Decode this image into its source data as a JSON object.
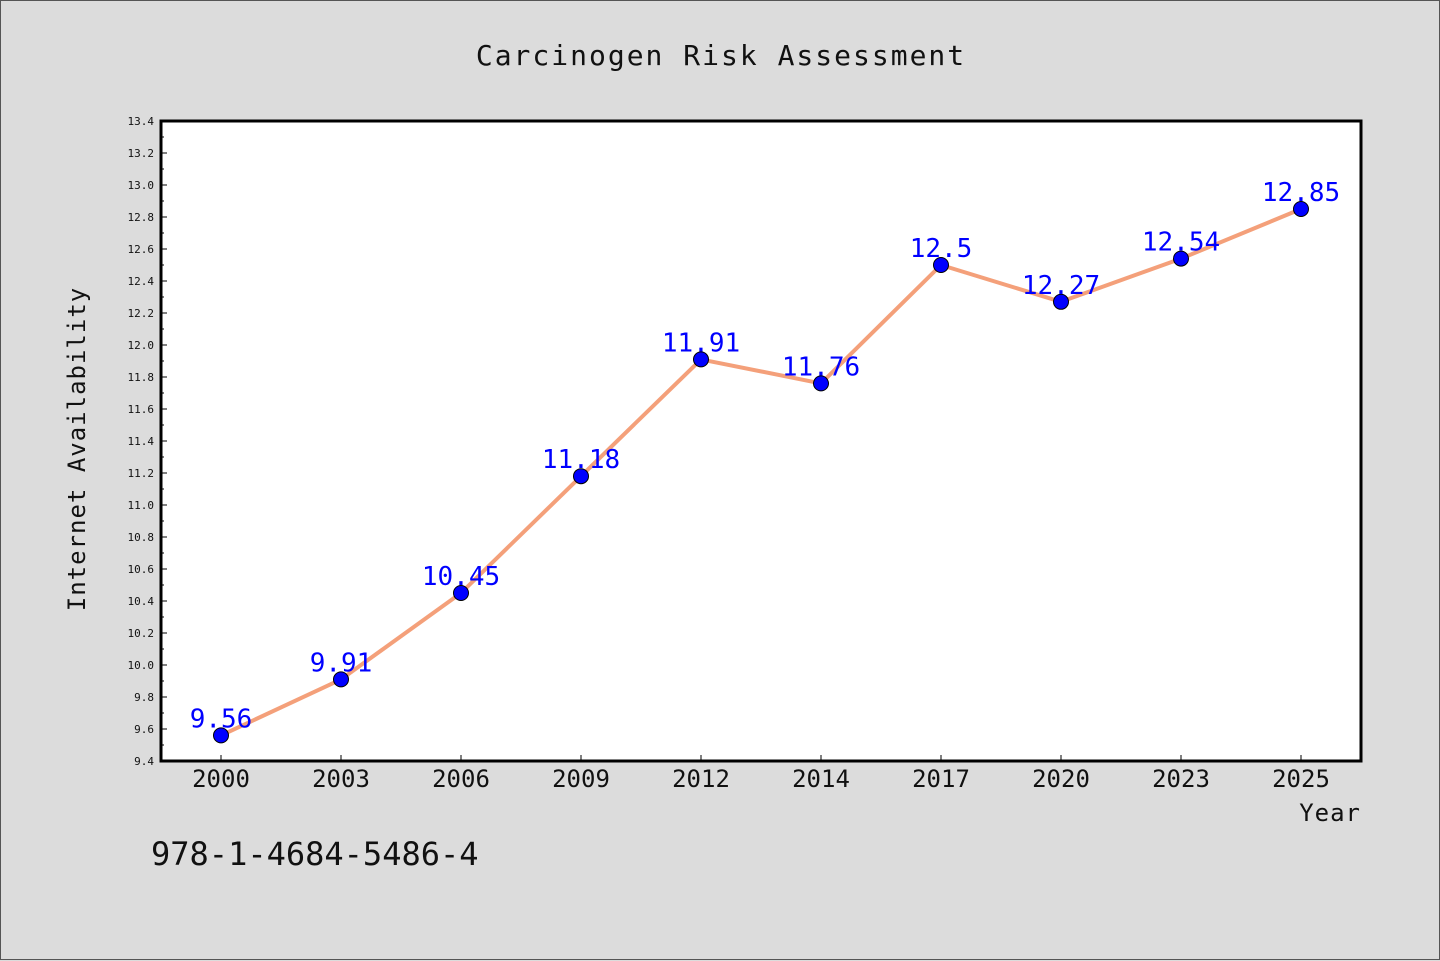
{
  "chart_data": {
    "type": "line",
    "title": "Carcinogen Risk Assessment",
    "xlabel": "Year",
    "ylabel": "Internet Availability",
    "categories": [
      "2000",
      "2003",
      "2006",
      "2009",
      "2012",
      "2014",
      "2017",
      "2020",
      "2023",
      "2025"
    ],
    "series": [
      {
        "values": [
          9.56,
          9.91,
          10.45,
          11.18,
          11.91,
          11.76,
          12.5,
          12.27,
          12.54,
          12.85
        ],
        "labels": [
          "9.56",
          "9.91",
          "10.45",
          "11.18",
          "11.91",
          "11.76",
          "12.5",
          "12.27",
          "12.54",
          "12.85"
        ]
      }
    ],
    "ylim": [
      9.4,
      13.4
    ],
    "yticks": [
      "9.4",
      "9.6",
      "9.8",
      "10.0",
      "10.2",
      "10.4",
      "10.6",
      "10.8",
      "11.0",
      "11.2",
      "11.4",
      "11.6",
      "11.8",
      "12.0",
      "12.2",
      "12.4",
      "12.6",
      "12.8",
      "13.0",
      "13.2",
      "13.4"
    ],
    "grid": false,
    "line_color": "#f4a07a",
    "marker_color": "#0000ff",
    "label_color": "#0000ff",
    "background": "#dcdcdc",
    "plot_background": "#ffffff"
  },
  "footer": {
    "code": "978-1-4684-5486-4"
  }
}
